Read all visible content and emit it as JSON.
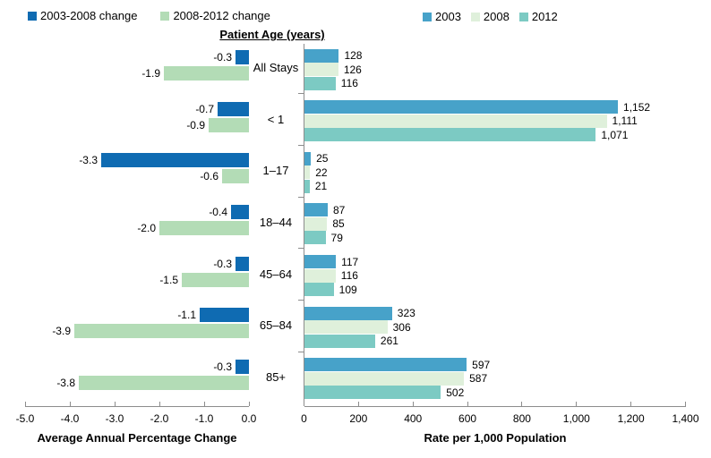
{
  "figure": {
    "center_title": "Patient Age (years)"
  },
  "legend_left": [
    {
      "label": "2003-2008 change",
      "color": "#0F6BB2"
    },
    {
      "label": "2008-2012 change",
      "color": "#B3DCB6"
    }
  ],
  "legend_right": [
    {
      "label": "2003",
      "color": "#47A2C9"
    },
    {
      "label": "2008",
      "color": "#DFF0DB"
    },
    {
      "label": "2012",
      "color": "#7CCAC3"
    }
  ],
  "colors": {
    "axis": "#8C8C8C",
    "text": "#000000",
    "background": "#FFFFFF"
  },
  "chart_data": [
    {
      "type": "bar",
      "orientation": "horizontal",
      "title": "",
      "xlabel": "Average Annual Percentage Change",
      "ylabel": "Patient Age (years)",
      "categories": [
        "All Stays",
        "< 1",
        "1–17",
        "18–44",
        "45–64",
        "65–84",
        "85+"
      ],
      "series": [
        {
          "name": "2003-2008 change",
          "color": "#0F6BB2",
          "values": [
            -0.3,
            -0.7,
            -3.3,
            -0.4,
            -0.3,
            -1.1,
            -0.3
          ]
        },
        {
          "name": "2008-2012 change",
          "color": "#B3DCB6",
          "values": [
            -1.9,
            -0.9,
            -0.6,
            -2.0,
            -1.5,
            -3.9,
            -3.8
          ]
        }
      ],
      "xlim": [
        -5.0,
        0.0
      ],
      "xticks": [
        "-5.0",
        "-4.0",
        "-3.0",
        "-2.0",
        "-1.0",
        "0.0"
      ],
      "grid": false,
      "legend_position": "top-left",
      "value_label_format": "fixed1"
    },
    {
      "type": "bar",
      "orientation": "horizontal",
      "title": "",
      "xlabel": "Rate per 1,000 Population",
      "ylabel": "Patient Age (years)",
      "categories": [
        "All Stays",
        "< 1",
        "1–17",
        "18–44",
        "45–64",
        "65–84",
        "85+"
      ],
      "series": [
        {
          "name": "2003",
          "color": "#47A2C9",
          "values": [
            128,
            1152,
            25,
            87,
            117,
            323,
            597
          ]
        },
        {
          "name": "2008",
          "color": "#DFF0DB",
          "values": [
            126,
            1111,
            22,
            85,
            116,
            306,
            587
          ]
        },
        {
          "name": "2012",
          "color": "#7CCAC3",
          "values": [
            116,
            1071,
            21,
            79,
            109,
            261,
            502
          ]
        }
      ],
      "xlim": [
        0,
        1400
      ],
      "xticks": [
        "0",
        "200",
        "400",
        "600",
        "800",
        "1,000",
        "1,200",
        "1,400"
      ],
      "grid": false,
      "legend_position": "top-center",
      "value_label_format": "thousands"
    }
  ]
}
